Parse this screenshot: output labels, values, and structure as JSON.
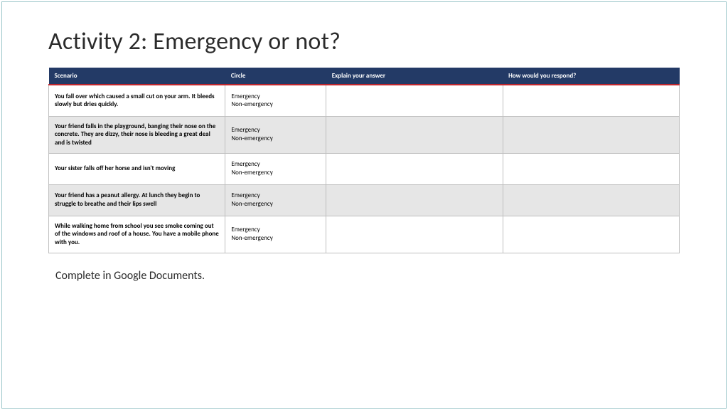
{
  "title": "Activity 2: Emergency or not?",
  "colors": {
    "header_bg": "#233a66",
    "header_text": "#ffffff",
    "accent_rule": "#c0272d",
    "row_alt_bg": "#e6e6e6",
    "border": "#bfbfbf",
    "slide_border": "#9ac5c9",
    "text": "#2b2b2b"
  },
  "typography": {
    "title_fontsize": 34,
    "table_fontsize": 9,
    "footer_fontsize": 16,
    "font_family": "Calibri"
  },
  "column_widths": {
    "scenario": "28%",
    "circle": "16%",
    "explain": "28%",
    "respond": "28%"
  },
  "columns": {
    "scenario": "Scenario",
    "circle": "Circle",
    "explain": "Explain your answer",
    "respond": "How would you respond?"
  },
  "circle_opt1": "Emergency",
  "circle_opt2": "Non-emergency",
  "rows": {
    "r1": {
      "scenario": "You fall over which caused a small cut on your arm. It bleeds slowly but dries quickly."
    },
    "r2": {
      "scenario": "Your friend falls in the playground, banging their nose on the concrete. They are dizzy, their nose is bleeding a great deal and is twisted"
    },
    "r3": {
      "scenario": "Your sister falls off her horse and isn't moving"
    },
    "r4": {
      "scenario": "Your friend has a peanut allergy. At lunch they begin to struggle to breathe and their lips swell"
    },
    "r5": {
      "scenario": "While walking home from school you see smoke coming out of the windows and roof of a house. You have a mobile phone with you."
    }
  },
  "footer": "Complete in Google Documents."
}
